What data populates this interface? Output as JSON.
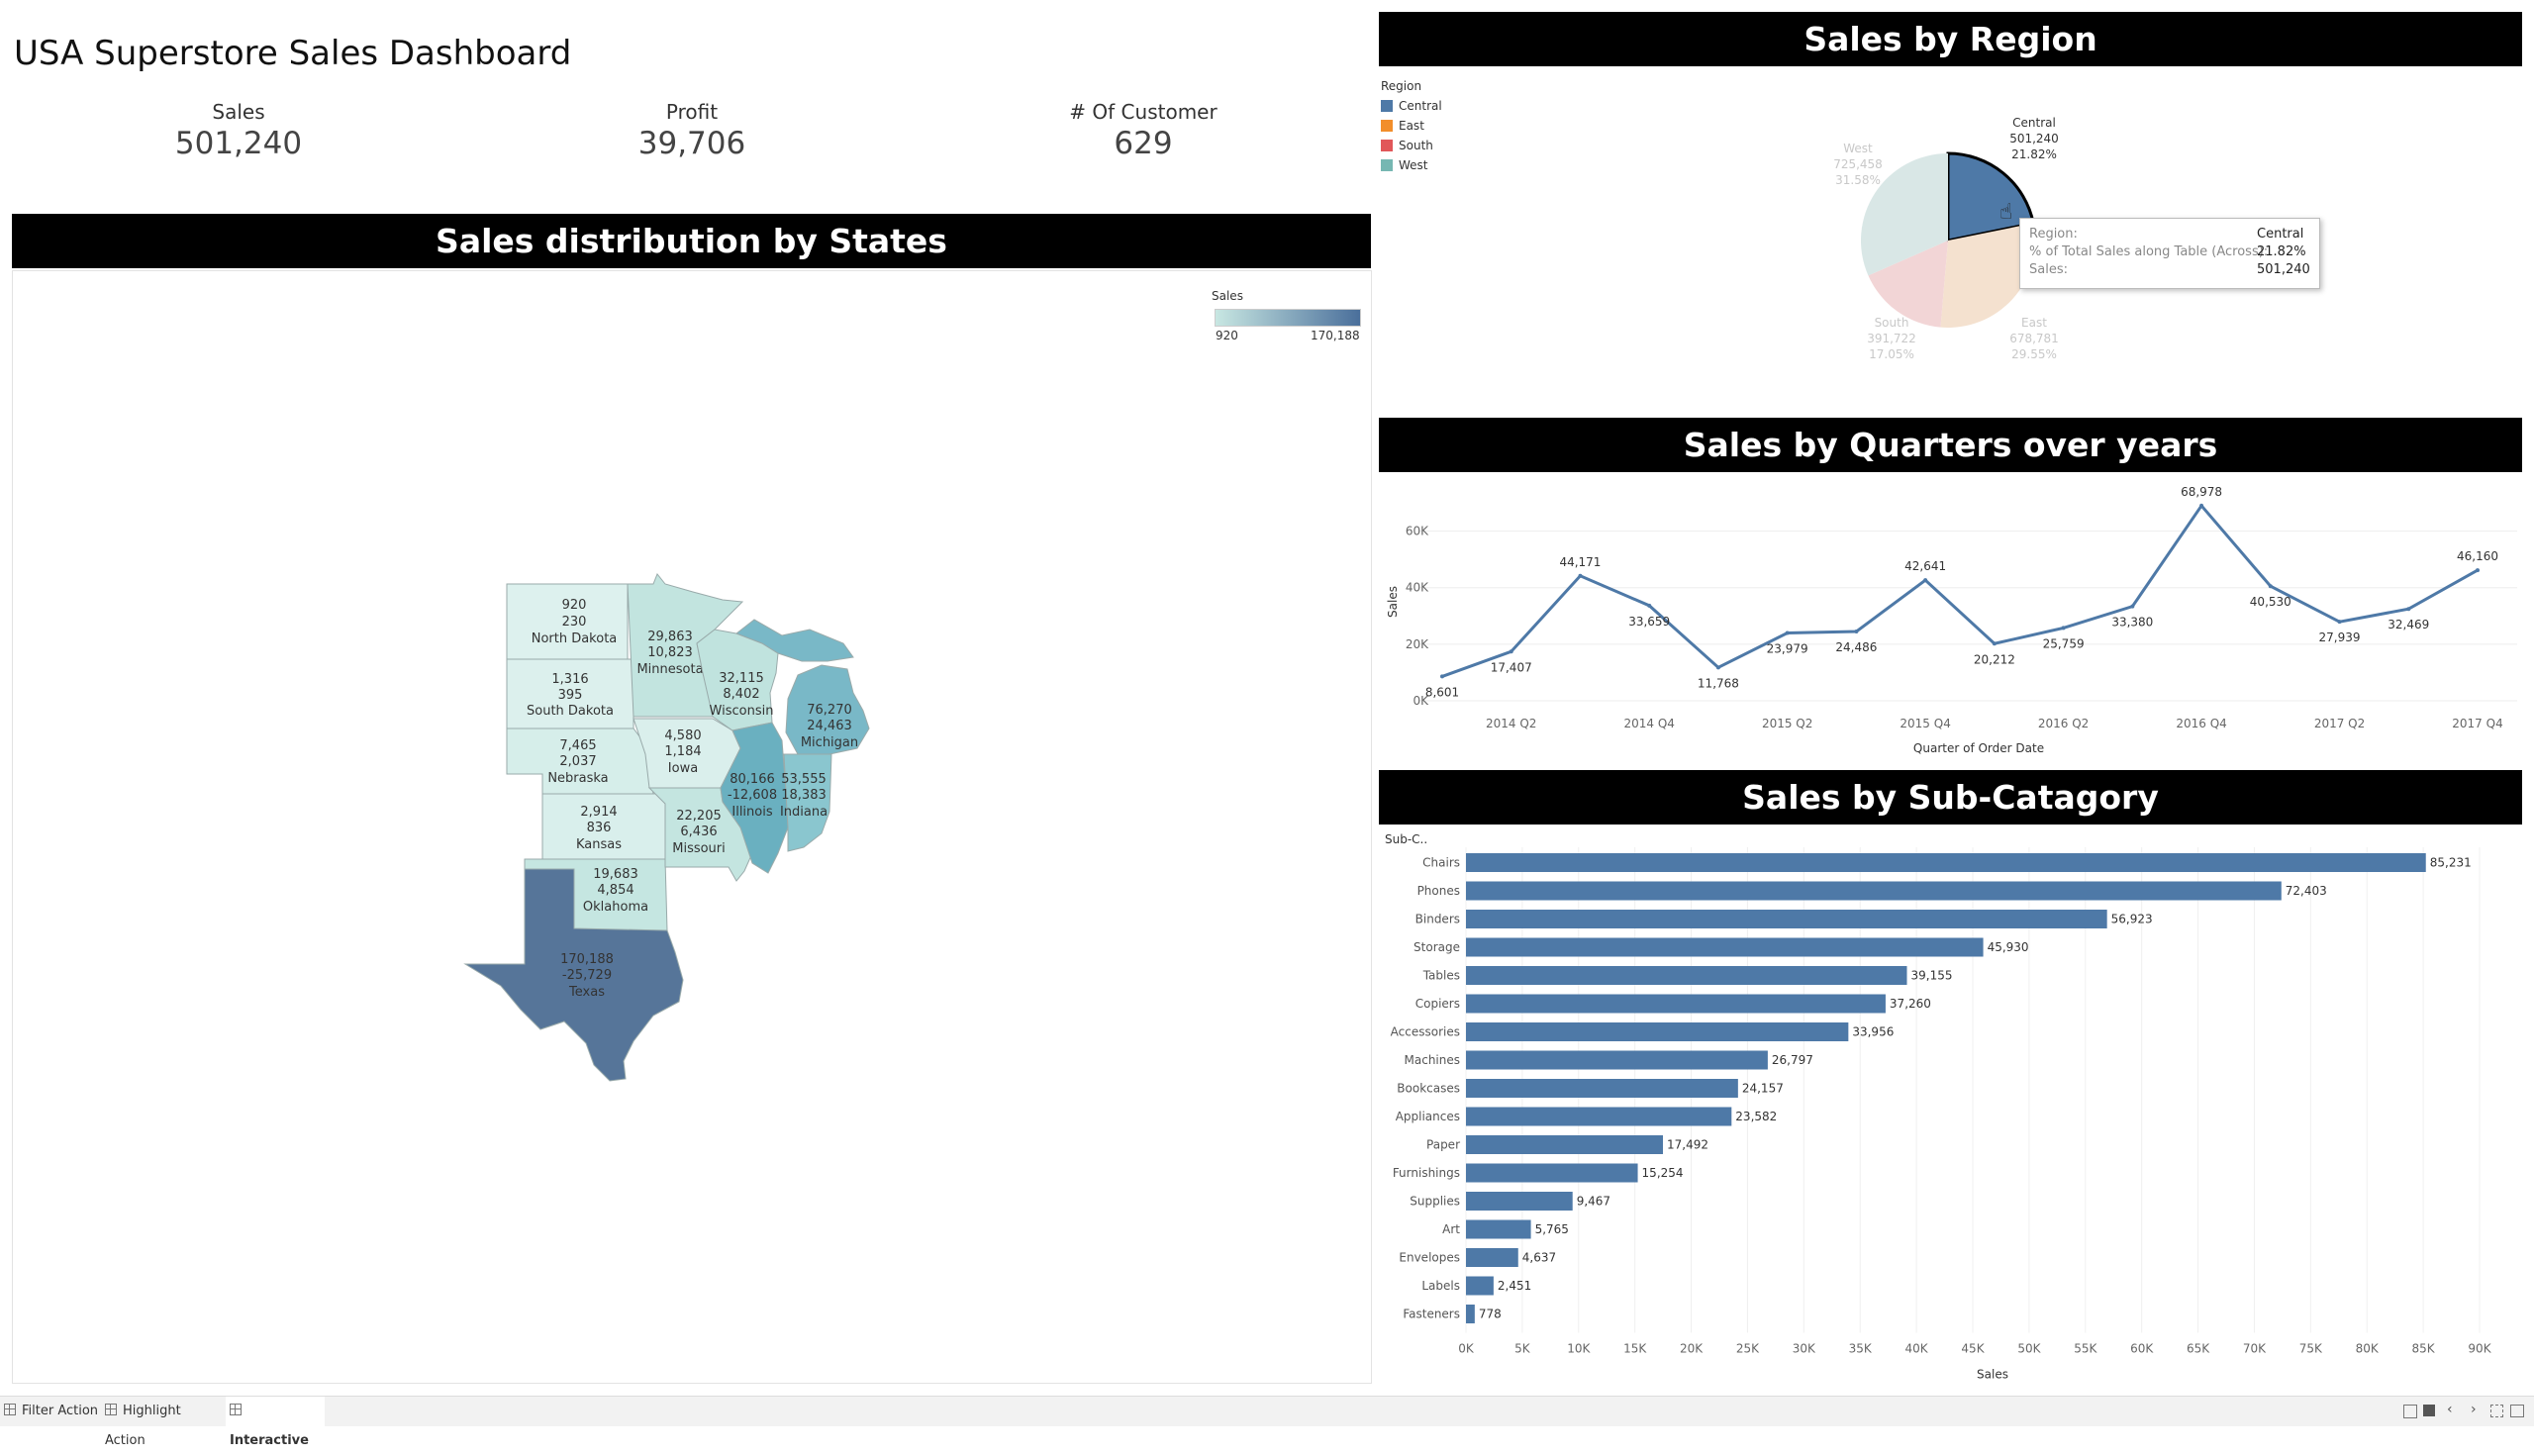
{
  "dashboard": {
    "title": "USA Superstore Sales Dashboard",
    "kpis": [
      {
        "label": "Sales",
        "value": "501,240"
      },
      {
        "label": "Profit",
        "value": "39,706"
      },
      {
        "label": "# Of Customer",
        "value": "629"
      }
    ]
  },
  "map_section": {
    "title": "Sales distribution by States",
    "legend": {
      "title": "Sales",
      "min": "920",
      "max": "170,188",
      "color_low": "#c8e7e2",
      "color_high": "#4a6f9b"
    },
    "states": [
      {
        "name": "North Dakota",
        "sales": "920",
        "profit": "230"
      },
      {
        "name": "South Dakota",
        "sales": "1,316",
        "profit": "395"
      },
      {
        "name": "Nebraska",
        "sales": "7,465",
        "profit": "2,037"
      },
      {
        "name": "Kansas",
        "sales": "2,914",
        "profit": "836"
      },
      {
        "name": "Oklahoma",
        "sales": "19,683",
        "profit": "4,854"
      },
      {
        "name": "Texas",
        "sales": "170,188",
        "profit": "-25,729"
      },
      {
        "name": "Minnesota",
        "sales": "29,863",
        "profit": "10,823"
      },
      {
        "name": "Iowa",
        "sales": "4,580",
        "profit": "1,184"
      },
      {
        "name": "Missouri",
        "sales": "22,205",
        "profit": "6,436"
      },
      {
        "name": "Wisconsin",
        "sales": "32,115",
        "profit": "8,402"
      },
      {
        "name": "Illinois",
        "sales": "80,166",
        "profit": "-12,608"
      },
      {
        "name": "Indiana",
        "sales": "53,555",
        "profit": "18,383"
      },
      {
        "name": "Michigan",
        "sales": "76,270",
        "profit": "24,463"
      }
    ]
  },
  "region_section": {
    "title": "Sales by Region",
    "legend_title": "Region",
    "regions": [
      {
        "name": "Central",
        "sales": "501,240",
        "pct": "21.82%",
        "color": "#4e79a7"
      },
      {
        "name": "East",
        "sales": "678,781",
        "pct": "29.55%",
        "color": "#f28e2b"
      },
      {
        "name": "South",
        "sales": "391,722",
        "pct": "17.05%",
        "color": "#e15759"
      },
      {
        "name": "West",
        "sales": "725,458",
        "pct": "31.58%",
        "color": "#76b7b2"
      }
    ],
    "tooltip": {
      "region_label": "Region:",
      "region_value": "Central",
      "pct_label": "% of Total Sales along Table (Across):",
      "pct_value": "21.82%",
      "sales_label": "Sales:",
      "sales_value": "501,240"
    }
  },
  "quarters_section": {
    "title": "Sales by Quarters over years"
  },
  "subcat_section": {
    "title": "Sales by Sub-Catagory"
  },
  "chart_data": [
    {
      "type": "pie",
      "title": "Sales by Region",
      "labels": [
        "Central",
        "East",
        "South",
        "West"
      ],
      "values": [
        501240,
        678781,
        391722,
        725458
      ],
      "percent": [
        21.82,
        29.55,
        17.05,
        31.58
      ],
      "highlighted": "Central",
      "legend": "top-left"
    },
    {
      "type": "line",
      "title": "Sales by Quarters over years",
      "xlabel": "Quarter of Order Date",
      "ylabel": "Sales",
      "x": [
        "2014 Q1",
        "2014 Q2",
        "2014 Q3",
        "2014 Q4",
        "2015 Q1",
        "2015 Q2",
        "2015 Q3",
        "2015 Q4",
        "2016 Q1",
        "2016 Q2",
        "2016 Q3",
        "2016 Q4",
        "2017 Q1",
        "2017 Q2",
        "2017 Q3",
        "2017 Q4"
      ],
      "x_tick_labels": [
        "2014 Q2",
        "2014 Q4",
        "2015 Q2",
        "2015 Q4",
        "2016 Q2",
        "2016 Q4",
        "2017 Q2",
        "2017 Q4"
      ],
      "values": [
        8601,
        17407,
        44171,
        33659,
        11768,
        23979,
        24486,
        42641,
        20212,
        25759,
        33380,
        68978,
        40530,
        27939,
        32469,
        46160
      ],
      "data_labels": [
        "8,601",
        "17,407",
        "44,171",
        "33,659",
        "11,768",
        "23,979",
        "24,486",
        "42,641",
        "20,212",
        "25,759",
        "33,380",
        "68,978",
        "40,530",
        "27,939",
        "32,469",
        "46,160"
      ],
      "ylim": [
        0,
        70000
      ],
      "y_ticks": [
        0,
        20000,
        40000,
        60000
      ],
      "y_tick_labels": [
        "0K",
        "20K",
        "40K",
        "60K"
      ],
      "color": "#4e79a7"
    },
    {
      "type": "bar",
      "orientation": "horizontal",
      "title": "Sales by Sub-Catagory",
      "ylabel": "Sub-C..",
      "xlabel": "Sales",
      "categories": [
        "Chairs",
        "Phones",
        "Binders",
        "Storage",
        "Tables",
        "Copiers",
        "Accessories",
        "Machines",
        "Bookcases",
        "Appliances",
        "Paper",
        "Furnishings",
        "Supplies",
        "Art",
        "Envelopes",
        "Labels",
        "Fasteners"
      ],
      "values": [
        85231,
        72403,
        56923,
        45930,
        39155,
        37260,
        33956,
        26797,
        24157,
        23582,
        17492,
        15254,
        9467,
        5765,
        4637,
        2451,
        778
      ],
      "data_labels": [
        "85,231",
        "72,403",
        "56,923",
        "45,930",
        "39,155",
        "37,260",
        "33,956",
        "26,797",
        "24,157",
        "23,582",
        "17,492",
        "15,254",
        "9,467",
        "5,765",
        "4,637",
        "2,451",
        "778"
      ],
      "xlim": [
        0,
        90000
      ],
      "x_ticks": [
        0,
        5000,
        10000,
        15000,
        20000,
        25000,
        30000,
        35000,
        40000,
        45000,
        50000,
        55000,
        60000,
        65000,
        70000,
        75000,
        80000,
        85000,
        90000
      ],
      "x_tick_labels": [
        "0K",
        "5K",
        "10K",
        "15K",
        "20K",
        "25K",
        "30K",
        "35K",
        "40K",
        "45K",
        "50K",
        "55K",
        "60K",
        "65K",
        "70K",
        "75K",
        "80K",
        "85K",
        "90K"
      ],
      "color": "#4e79a7"
    }
  ],
  "tabs": [
    {
      "label": "Filter Action",
      "active": false
    },
    {
      "label": "Highlight Action",
      "active": false
    },
    {
      "label": "Interactive",
      "active": true
    }
  ]
}
